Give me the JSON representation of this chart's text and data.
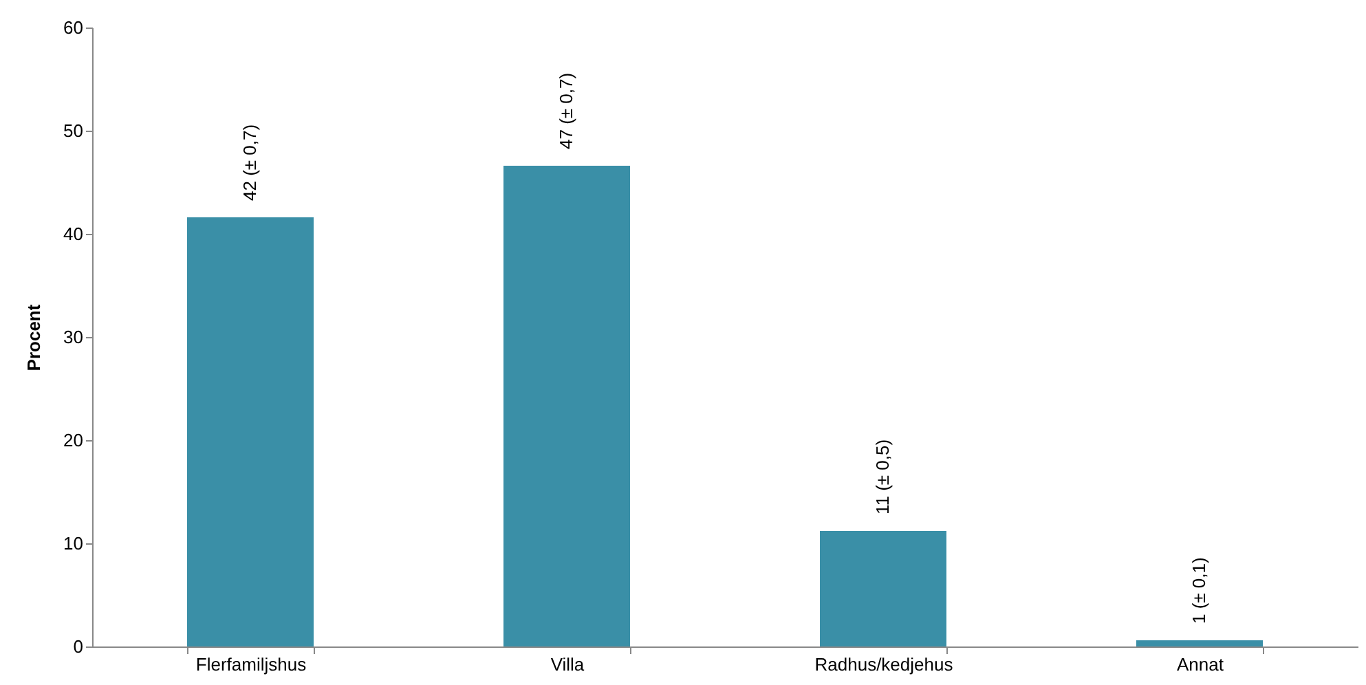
{
  "chart_data": {
    "type": "bar",
    "ylabel": "Procent",
    "categories": [
      "Flerfamiljshus",
      "Villa",
      "Radhus/kedjehus",
      "Annat"
    ],
    "values": [
      41.6,
      46.6,
      11.2,
      0.6
    ],
    "value_labels": [
      "42  (± 0,7)",
      "47  (± 0,7)",
      "11  (± 0,5)",
      "1  (± 0,1)"
    ],
    "color": "#3a8fa7",
    "ylim": [
      0,
      60
    ],
    "yticks": [
      0,
      10,
      20,
      30,
      40,
      50,
      60
    ],
    "grid": false
  }
}
